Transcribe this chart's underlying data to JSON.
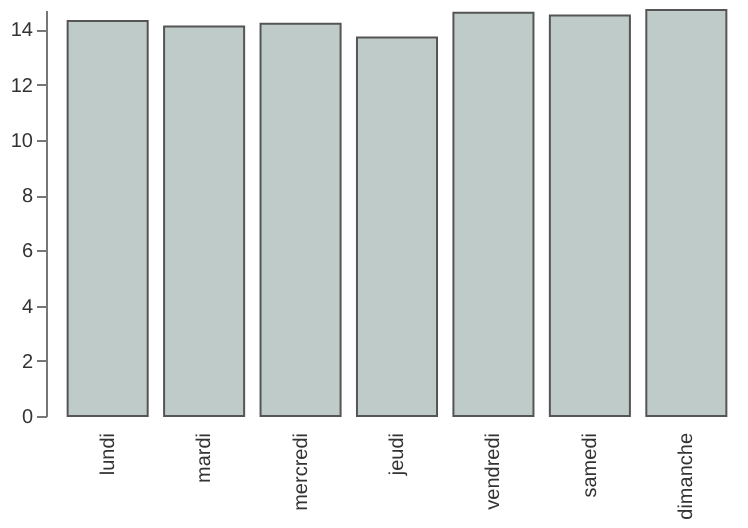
{
  "chart_data": {
    "type": "bar",
    "categories": [
      "lundi",
      "mardi",
      "mercredi",
      "jeudi",
      "vendredi",
      "samedi",
      "dimanche"
    ],
    "values": [
      14.3,
      14.1,
      14.2,
      13.7,
      14.6,
      14.5,
      14.7
    ],
    "color": "#bfcbc9",
    "ylim": [
      0,
      14.7
    ],
    "yticks": [
      0,
      2,
      4,
      6,
      8,
      10,
      12,
      14
    ],
    "grid": false
  }
}
